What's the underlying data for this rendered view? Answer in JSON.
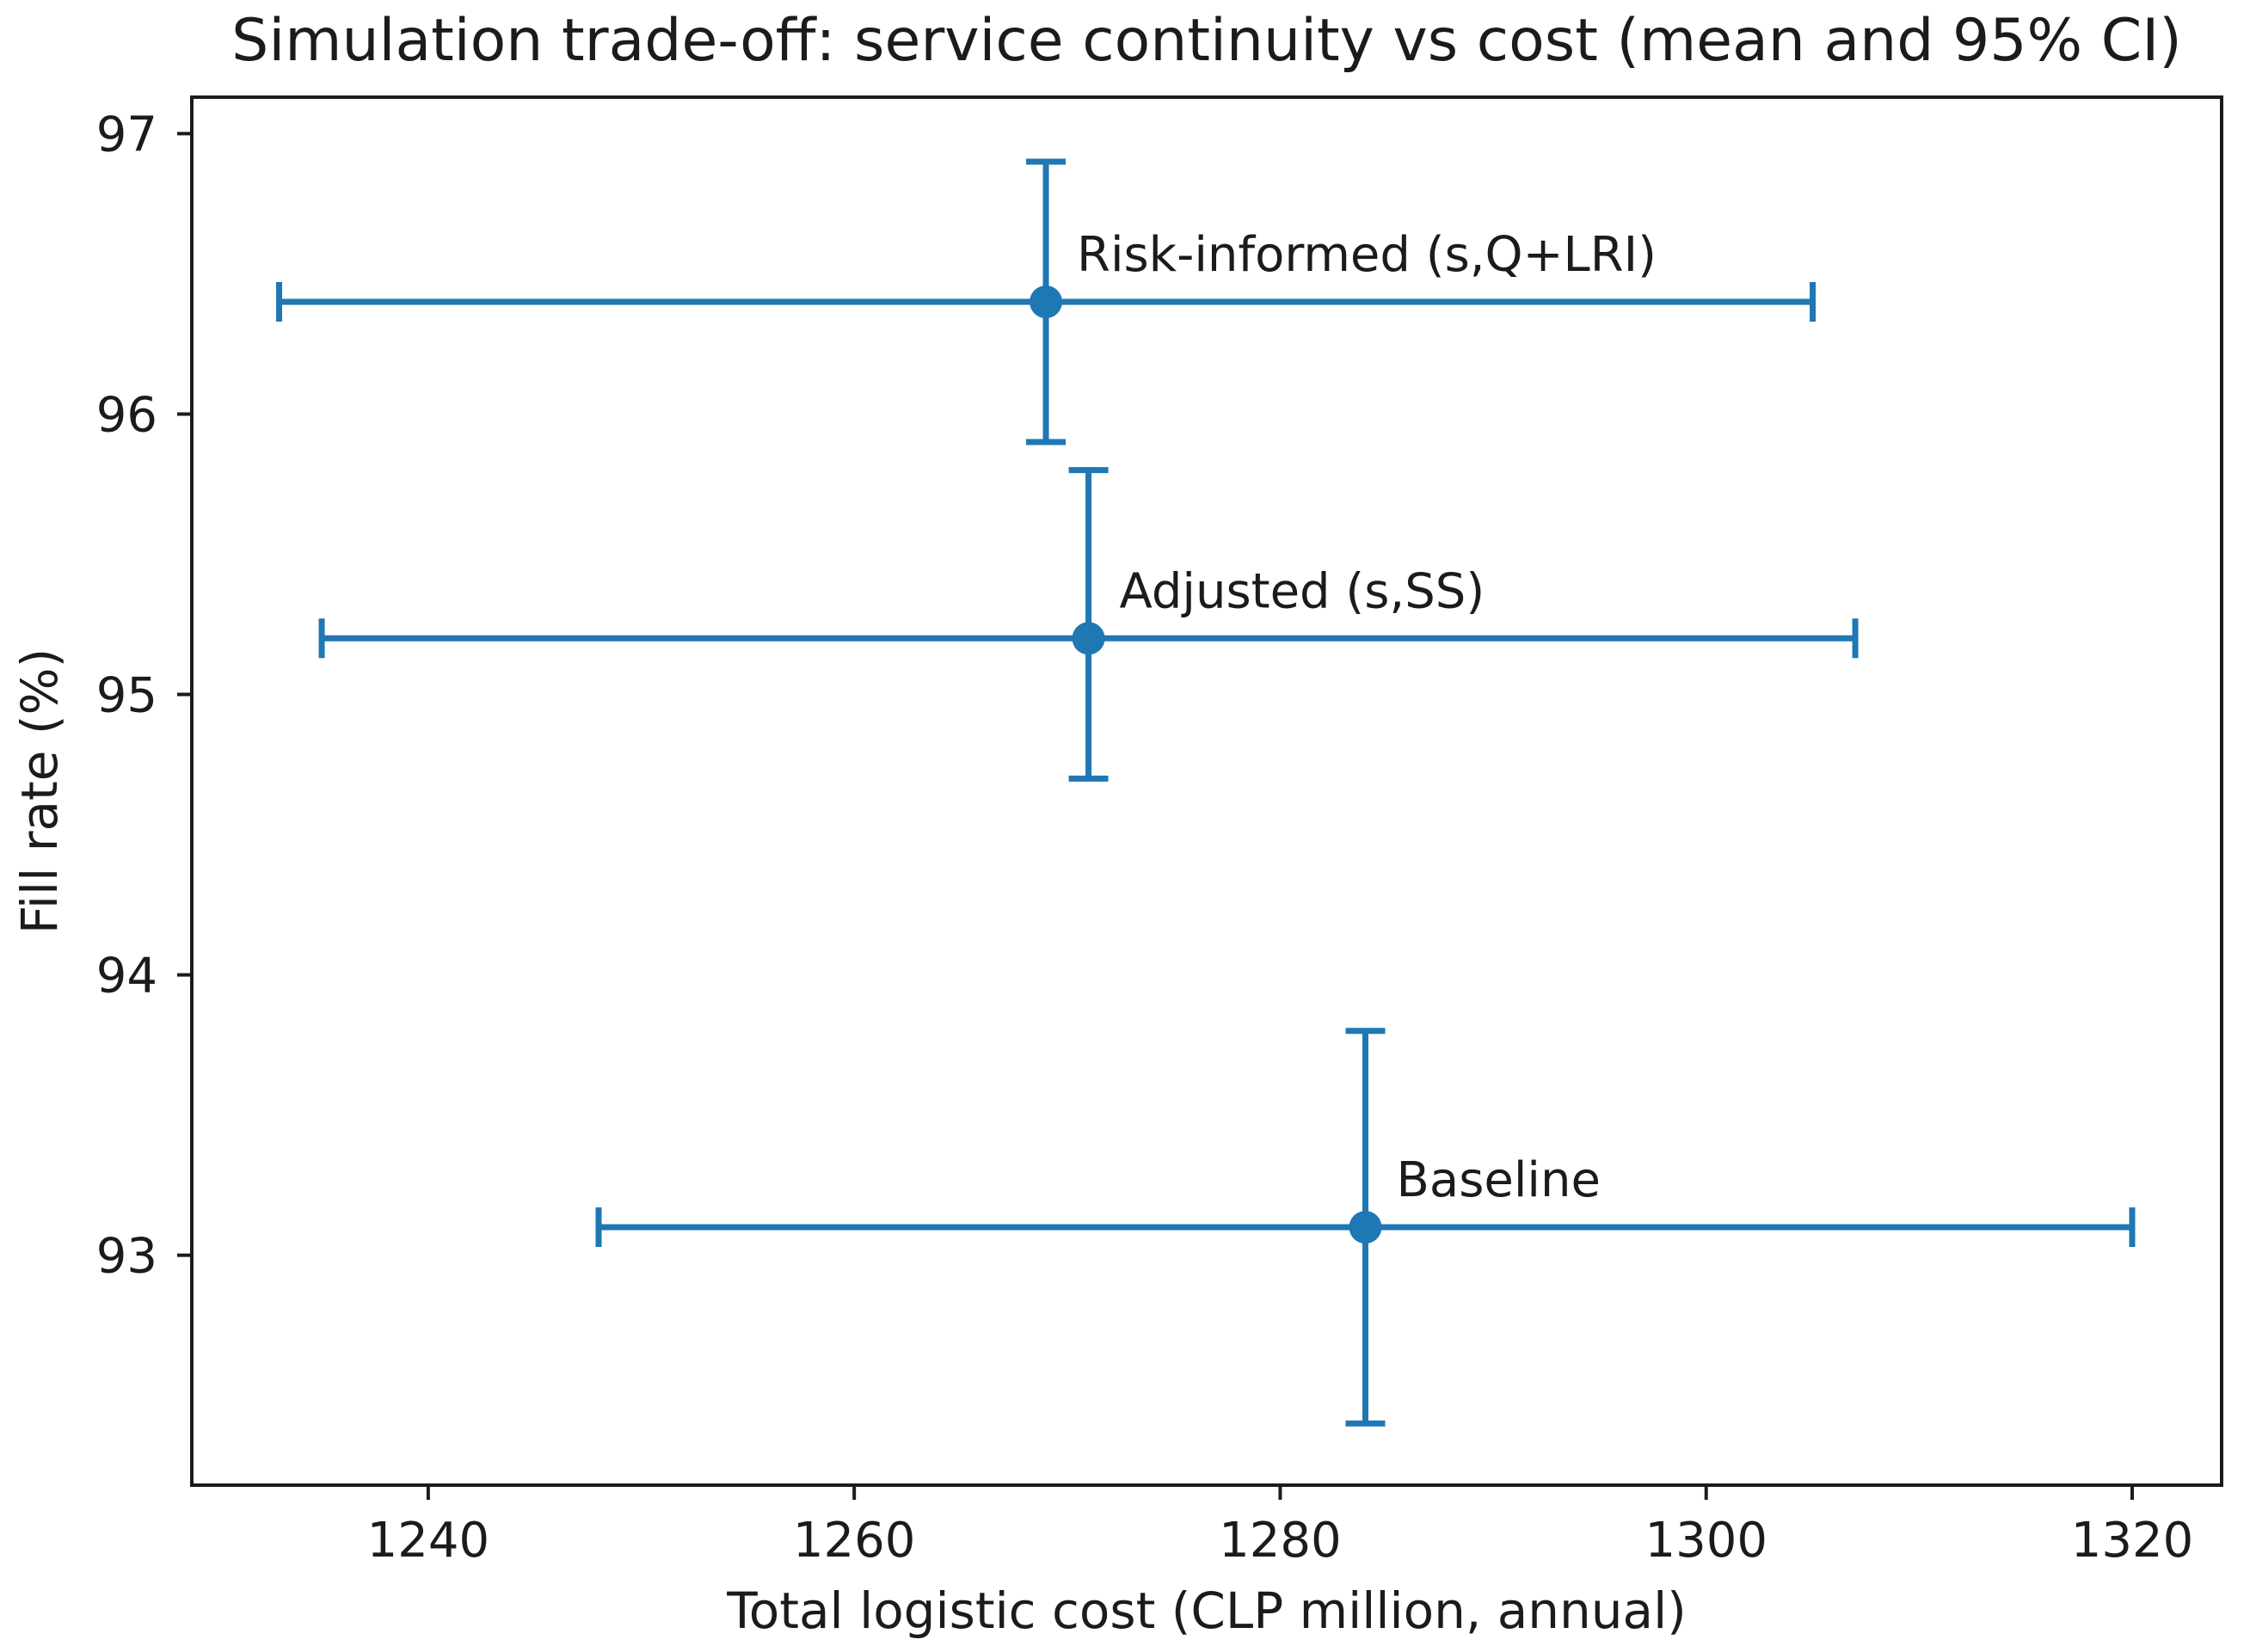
{
  "chart_data": {
    "type": "scatter",
    "title": "Simulation trade-off: service continuity vs cost (mean and 95% CI)",
    "xlabel": "Total logistic cost (CLP million, annual)",
    "ylabel": "Fill rate (%)",
    "xlim": [
      1228.9,
      1324.2
    ],
    "ylim": [
      92.18,
      97.13
    ],
    "x_ticks": [
      1240,
      1260,
      1280,
      1300,
      1320
    ],
    "y_ticks": [
      93,
      94,
      95,
      96,
      97
    ],
    "grid": false,
    "legend": "none",
    "error_bars": "95% CI on both axes (x and y caps)",
    "points": [
      {
        "label": "Risk-informed (s,Q+LRI)",
        "x": 1269,
        "x_ci": [
          1233,
          1305
        ],
        "y": 96.4,
        "y_ci": [
          95.9,
          96.9
        ]
      },
      {
        "label": "Adjusted (s,SS)",
        "x": 1271,
        "x_ci": [
          1235,
          1307
        ],
        "y": 95.2,
        "y_ci": [
          94.7,
          95.8
        ]
      },
      {
        "label": "Baseline",
        "x": 1284,
        "x_ci": [
          1248,
          1320
        ],
        "y": 93.1,
        "y_ci": [
          92.4,
          93.8
        ]
      }
    ],
    "colors": {
      "accent": "#1f77b4",
      "text": "#1b1b1b",
      "frame": "#1b1b1b",
      "background": "#ffffff"
    }
  }
}
